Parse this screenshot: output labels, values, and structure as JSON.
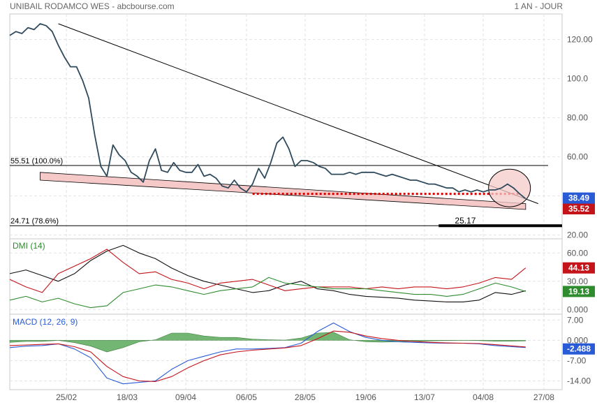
{
  "header": {
    "title": "UNIBAIL RODAMCO WES - abcbourse.com",
    "period": "1 AN - JOUR"
  },
  "x_axis": {
    "ticks": [
      "25/02",
      "18/03",
      "09/04",
      "06/05",
      "28/05",
      "19/06",
      "13/07",
      "04/08",
      "27/08"
    ]
  },
  "chart_data": [
    {
      "type": "line",
      "panel": "price",
      "y_ticks": [
        "120.00",
        "100.0",
        "80.00",
        "60.00",
        "40.00",
        "20.00"
      ],
      "ylim": [
        18,
        133
      ],
      "x": [
        0,
        3,
        6,
        9,
        12,
        15,
        18,
        21,
        24,
        27,
        30,
        33,
        36,
        39,
        42,
        45,
        48,
        51,
        54,
        57,
        60,
        63,
        66,
        69,
        72,
        75,
        78,
        81,
        84,
        87,
        90,
        93,
        96,
        99,
        102,
        105,
        108,
        111,
        114,
        117,
        120,
        123,
        126,
        129,
        132,
        135,
        138,
        141,
        144,
        147,
        150,
        153,
        156,
        159,
        162,
        165,
        168,
        171,
        174,
        177,
        180,
        183,
        186,
        189,
        192,
        195,
        198,
        201,
        204,
        207,
        210,
        213,
        216,
        219,
        222,
        225,
        228,
        231,
        234,
        237,
        240,
        243,
        246,
        249,
        252,
        255
      ],
      "series": [
        {
          "values": [
            122,
            124,
            123,
            126,
            125,
            128,
            127,
            124,
            117,
            111,
            106,
            106,
            99,
            90,
            71,
            55,
            50,
            66,
            61,
            58,
            52,
            50,
            47,
            58,
            64,
            53,
            52,
            57,
            53,
            52,
            52,
            56,
            50,
            51,
            49,
            45,
            44,
            48,
            44,
            42,
            46,
            54,
            49,
            57,
            67,
            70,
            64,
            55,
            58,
            58,
            57,
            55,
            54,
            51,
            51,
            51,
            52,
            51,
            52,
            52,
            52,
            51,
            50,
            51,
            50,
            49,
            48,
            48,
            47,
            46,
            46,
            45,
            44,
            44,
            42,
            43,
            42,
            43,
            42,
            43,
            43,
            44,
            46,
            44,
            41,
            38.49
          ],
          "color": "#2e4a5c"
        }
      ],
      "last_value": "38.49",
      "last_value_color": "#2a5bd7",
      "second_label": "35.52",
      "second_label_color": "#c4141a",
      "annotations": {
        "fib_100_label": "55.51  (100.0%)",
        "fib_100_value": 55.51,
        "fib_786_label": "24.71  (78.6%)",
        "fib_786_value": 24.71,
        "low_label": "25.17",
        "resistance_dotted_value": 41.0,
        "downtrend_line": {
          "from": [
            24,
            128
          ],
          "to": [
            255,
            39
          ]
        },
        "channel_upper": {
          "from": [
            15,
            52
          ],
          "to": [
            255,
            36
          ]
        },
        "channel_lower": {
          "from": [
            15,
            48
          ],
          "to": [
            255,
            33
          ]
        },
        "channel_fill": "#f6c9c9",
        "circle_color": "#f6c9c9"
      }
    },
    {
      "type": "line",
      "panel": "dmi",
      "label": "DMI (14)",
      "y_ticks": [
        "60.00",
        "30.00",
        "0.000"
      ],
      "ylim": [
        -5,
        75
      ],
      "x": [
        0,
        8,
        16,
        24,
        32,
        40,
        48,
        56,
        64,
        72,
        80,
        88,
        96,
        104,
        112,
        120,
        128,
        136,
        144,
        152,
        160,
        168,
        176,
        184,
        192,
        200,
        208,
        216,
        224,
        232,
        240,
        248,
        255
      ],
      "series": [
        {
          "values": [
            38,
            42,
            36,
            30,
            38,
            52,
            62,
            68,
            60,
            54,
            44,
            36,
            30,
            26,
            22,
            18,
            20,
            26,
            30,
            22,
            20,
            16,
            14,
            13,
            12,
            10,
            9,
            8,
            8,
            10,
            18,
            16,
            20
          ],
          "color": "#111111"
        },
        {
          "values": [
            32,
            24,
            18,
            38,
            46,
            54,
            64,
            50,
            38,
            40,
            32,
            28,
            22,
            28,
            30,
            32,
            26,
            20,
            22,
            24,
            24,
            24,
            22,
            24,
            22,
            24,
            24,
            22,
            24,
            28,
            34,
            32,
            44.13
          ],
          "color": "#c4141a"
        },
        {
          "values": [
            10,
            14,
            8,
            12,
            6,
            2,
            4,
            18,
            22,
            26,
            24,
            20,
            16,
            20,
            22,
            24,
            34,
            28,
            26,
            24,
            22,
            22,
            22,
            20,
            18,
            16,
            16,
            14,
            16,
            22,
            28,
            24,
            19.13
          ],
          "color": "#2e8b2e"
        }
      ],
      "values_labels": [
        {
          "text": "44.13",
          "color": "#c4141a"
        },
        {
          "text": "19.13",
          "color": "#2e8b2e"
        }
      ]
    },
    {
      "type": "line",
      "panel": "macd",
      "label": "MACD (12, 26, 9)",
      "y_ticks": [
        "7.00",
        "0.000",
        "-7.00",
        "-14.00"
      ],
      "ylim": [
        -17,
        9
      ],
      "x": [
        0,
        8,
        16,
        24,
        32,
        40,
        48,
        56,
        64,
        72,
        80,
        88,
        96,
        104,
        112,
        120,
        128,
        136,
        144,
        152,
        160,
        168,
        176,
        184,
        192,
        200,
        208,
        216,
        224,
        232,
        240,
        248,
        255
      ],
      "series": [
        {
          "values": [
            -2.5,
            -2,
            -1.8,
            -1.2,
            -3,
            -6,
            -13,
            -15,
            -14.5,
            -14,
            -10,
            -7,
            -5.5,
            -4,
            -3,
            -3,
            -2.8,
            -2.5,
            -1,
            3,
            6,
            3,
            1,
            0,
            -0.5,
            -0.7,
            -0.9,
            -1,
            -1,
            -1.2,
            -1.8,
            -2.2,
            -2.488
          ],
          "color": "#2a5bd7"
        },
        {
          "values": [
            -1.8,
            -1.6,
            -1.4,
            -1.2,
            -2.2,
            -4,
            -9,
            -12.5,
            -14,
            -14.2,
            -12.5,
            -9.5,
            -7,
            -5,
            -4,
            -3.4,
            -3,
            -2.6,
            -1.8,
            0.5,
            3.2,
            2.8,
            1.5,
            0.6,
            0,
            -0.4,
            -0.7,
            -0.9,
            -1,
            -1.1,
            -1.5,
            -1.9,
            -2.3
          ],
          "color": "#c4141a"
        }
      ],
      "histogram": {
        "values": [
          -0.7,
          -0.4,
          -0.4,
          0,
          -0.8,
          -2,
          -4,
          -2.5,
          -0.5,
          0.2,
          2.5,
          2.5,
          1.5,
          1,
          1,
          0.4,
          0.2,
          0.1,
          0.8,
          2.5,
          2.8,
          0.2,
          -0.5,
          -0.6,
          -0.5,
          -0.3,
          -0.2,
          -0.1,
          0,
          -0.1,
          -0.3,
          -0.3,
          -0.2
        ],
        "color": "#5aa85a"
      },
      "value_label": {
        "text": "-2.488",
        "color": "#2a5bd7"
      }
    }
  ]
}
